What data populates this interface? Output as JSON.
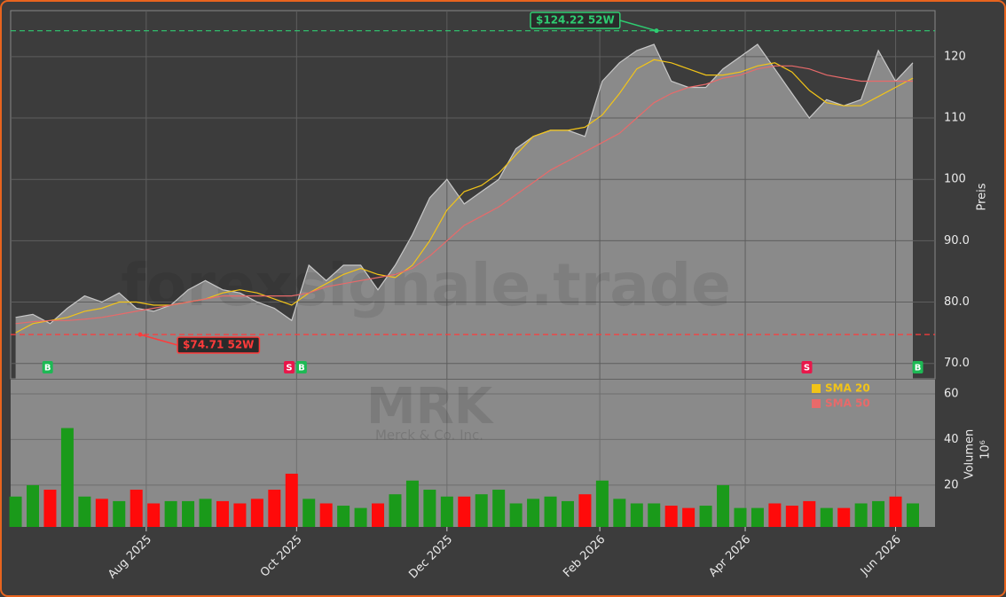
{
  "chart_data": [
    {
      "type": "area",
      "ticker_watermark": "MRK",
      "company_watermark": "Merck & Co. Inc.",
      "site_watermark": "forexsignale.trade",
      "y_label": "Preis",
      "color": "#8a8a8a",
      "x": [
        "2025-06-09",
        "2025-06-16",
        "2025-06-23",
        "2025-06-30",
        "2025-07-07",
        "2025-07-14",
        "2025-07-21",
        "2025-07-28",
        "2025-08-04",
        "2025-08-11",
        "2025-08-18",
        "2025-08-25",
        "2025-09-01",
        "2025-09-08",
        "2025-09-15",
        "2025-09-22",
        "2025-09-29",
        "2025-10-06",
        "2025-10-13",
        "2025-10-20",
        "2025-10-27",
        "2025-11-03",
        "2025-11-10",
        "2025-11-17",
        "2025-11-24",
        "2025-12-01",
        "2025-12-08",
        "2025-12-15",
        "2025-12-22",
        "2025-12-29",
        "2026-01-05",
        "2026-01-12",
        "2026-01-19",
        "2026-01-26",
        "2026-02-02",
        "2026-02-09",
        "2026-02-16",
        "2026-02-23",
        "2026-03-02",
        "2026-03-09",
        "2026-03-16",
        "2026-03-23",
        "2026-03-30",
        "2026-04-06",
        "2026-04-13",
        "2026-04-20",
        "2026-04-27",
        "2026-05-04",
        "2026-05-11",
        "2026-05-18",
        "2026-05-25",
        "2026-06-01",
        "2026-06-08"
      ],
      "values": [
        77.5,
        78,
        76.5,
        79,
        81,
        80,
        81.5,
        79,
        78.5,
        79.5,
        82,
        83.5,
        82,
        81.5,
        80,
        79,
        77,
        86,
        83.5,
        86,
        86,
        82,
        86,
        91,
        97,
        100,
        96,
        98,
        100,
        105,
        107,
        108,
        108,
        107,
        116,
        119,
        121,
        122,
        116,
        115,
        115,
        118,
        120,
        122,
        118,
        114,
        110,
        113,
        112,
        113,
        121,
        116,
        119
      ],
      "series": [
        {
          "name": "SMA 20",
          "color": "#f2c418",
          "values": [
            75,
            76.5,
            77,
            77.5,
            78.5,
            79,
            80,
            80,
            79.5,
            79.5,
            80,
            80.5,
            81.5,
            82,
            81.5,
            80.5,
            79.5,
            81.5,
            83,
            84.5,
            85.5,
            84.5,
            84,
            86,
            90,
            95,
            98,
            99,
            101,
            104,
            107,
            108,
            108,
            108.5,
            110.5,
            114,
            118,
            119.5,
            119,
            118,
            117,
            117,
            117.5,
            118.5,
            119,
            117.5,
            114.5,
            112.5,
            112,
            112,
            113.5,
            115,
            116.5
          ]
        },
        {
          "name": "SMA 50",
          "color": "#e86a6a",
          "values": [
            76.5,
            76.8,
            77,
            77,
            77.2,
            77.5,
            78,
            78.5,
            79,
            79.5,
            80,
            80.5,
            81,
            81,
            81,
            81,
            81,
            81.5,
            82.5,
            83,
            83.5,
            84,
            84.5,
            85.5,
            87.5,
            90,
            92.5,
            94,
            95.5,
            97.5,
            99.5,
            101.5,
            103,
            104.5,
            106,
            107.5,
            110,
            112.5,
            114,
            115,
            115.5,
            116.5,
            117,
            118,
            118.5,
            118.5,
            118,
            117,
            116.5,
            116,
            116,
            116,
            116
          ]
        }
      ],
      "annotations": [
        {
          "text": "$124.22 52W",
          "value": 124.22,
          "color": "#2ecc71"
        },
        {
          "text": "$74.71 52W",
          "value": 74.71,
          "color": "#ff3b3b"
        }
      ],
      "signals": [
        {
          "label": "B",
          "x": "2025-06-22",
          "color": "#1db954"
        },
        {
          "label": "S",
          "x": "2025-09-28",
          "color": "#e8174a"
        },
        {
          "label": "B",
          "x": "2025-10-03",
          "color": "#1db954"
        },
        {
          "label": "S",
          "x": "2026-04-26",
          "color": "#e8174a"
        },
        {
          "label": "B",
          "x": "2026-06-10",
          "color": "#1db954"
        }
      ],
      "xlim": [
        "2025-06-07",
        "2026-06-17"
      ],
      "ylim": [
        67.5,
        127.5
      ],
      "yticks": [
        {
          "value": 70,
          "label": "70.0"
        },
        {
          "value": 80,
          "label": "80.0"
        },
        {
          "value": 90,
          "label": "90.0"
        },
        {
          "value": 100,
          "label": "100"
        },
        {
          "value": 110,
          "label": "110"
        },
        {
          "value": 120,
          "label": "120"
        }
      ],
      "grid": true
    },
    {
      "type": "bar",
      "y_label": "Volumen",
      "unit_label": "10⁶",
      "up_color": "#1a9a1a",
      "down_color": "#ff0a0a",
      "x": [
        "2025-06-09",
        "2025-06-16",
        "2025-06-23",
        "2025-06-30",
        "2025-07-07",
        "2025-07-14",
        "2025-07-21",
        "2025-07-28",
        "2025-08-04",
        "2025-08-11",
        "2025-08-18",
        "2025-08-25",
        "2025-09-01",
        "2025-09-08",
        "2025-09-15",
        "2025-09-22",
        "2025-09-29",
        "2025-10-06",
        "2025-10-13",
        "2025-10-20",
        "2025-10-27",
        "2025-11-03",
        "2025-11-10",
        "2025-11-17",
        "2025-11-24",
        "2025-12-01",
        "2025-12-08",
        "2025-12-15",
        "2025-12-22",
        "2025-12-29",
        "2026-01-05",
        "2026-01-12",
        "2026-01-19",
        "2026-01-26",
        "2026-02-02",
        "2026-02-09",
        "2026-02-16",
        "2026-02-23",
        "2026-03-02",
        "2026-03-09",
        "2026-03-16",
        "2026-03-23",
        "2026-03-30",
        "2026-04-06",
        "2026-04-13",
        "2026-04-20",
        "2026-04-27",
        "2026-05-04",
        "2026-05-11",
        "2026-05-18",
        "2026-05-25",
        "2026-06-01",
        "2026-06-08"
      ],
      "values": [
        15,
        20,
        18,
        45,
        15,
        14,
        13,
        18,
        12,
        13,
        13,
        14,
        13,
        12,
        14,
        18,
        25,
        14,
        12,
        11,
        10,
        12,
        16,
        22,
        18,
        15,
        15,
        16,
        18,
        12,
        14,
        15,
        13,
        16,
        22,
        14,
        12,
        12,
        11,
        10,
        11,
        20,
        10,
        10,
        12,
        11,
        13,
        10,
        10,
        12,
        13,
        15,
        12
      ],
      "xlim": [
        "2025-06-07",
        "2026-06-17"
      ],
      "ylim": [
        1.7,
        66.2
      ],
      "yticks": [
        20,
        40,
        60
      ],
      "xticks": [
        {
          "value": "2025-08-01",
          "label": "Aug 2025"
        },
        {
          "value": "2025-10-01",
          "label": "Oct 2025"
        },
        {
          "value": "2025-12-01",
          "label": "Dec 2025"
        },
        {
          "value": "2026-02-01",
          "label": "Feb 2026"
        },
        {
          "value": "2026-04-01",
          "label": "Apr 2026"
        },
        {
          "value": "2026-06-01",
          "label": "Jun 2026"
        }
      ],
      "grid": true
    }
  ]
}
